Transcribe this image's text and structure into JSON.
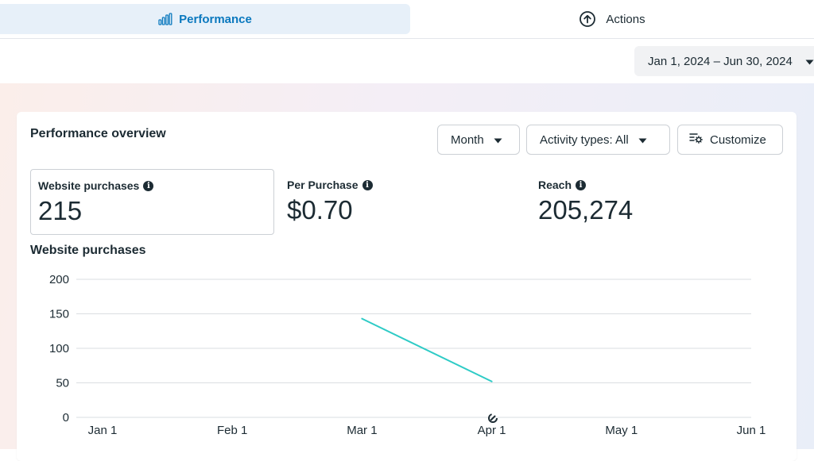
{
  "tabs": [
    {
      "label": "Performance",
      "icon": "bar-chart-icon",
      "selected": true
    },
    {
      "label": "Actions",
      "icon": "arrow-up-circle-icon",
      "selected": false
    }
  ],
  "date_range": {
    "label": "Jan 1, 2024 – Jun 30, 2024"
  },
  "card": {
    "title": "Performance overview",
    "controls": {
      "month": "Month",
      "activity": "Activity types: All",
      "customize": "Customize"
    },
    "metrics": [
      {
        "label": "Website purchases",
        "value": "215"
      },
      {
        "label": "Per Purchase",
        "value": "$0.70"
      },
      {
        "label": "Reach",
        "value": "205,274"
      }
    ],
    "chart_title": "Website purchases"
  },
  "colors": {
    "accent": "#0a78be",
    "line": "#2ecbc6",
    "tab_bg": "#e7f0f9"
  },
  "chart_data": {
    "type": "line",
    "x_ticks": [
      "Jan 1",
      "Feb 1",
      "Mar 1",
      "Apr 1",
      "May 1",
      "Jun 1"
    ],
    "y_ticks": [
      0,
      50,
      100,
      150,
      200
    ],
    "ylim": [
      0,
      200
    ],
    "grid": true,
    "series": [
      {
        "points": [
          {
            "x": "Mar 1",
            "y": 143
          },
          {
            "x": "Apr 1",
            "y": 52
          }
        ]
      }
    ]
  }
}
